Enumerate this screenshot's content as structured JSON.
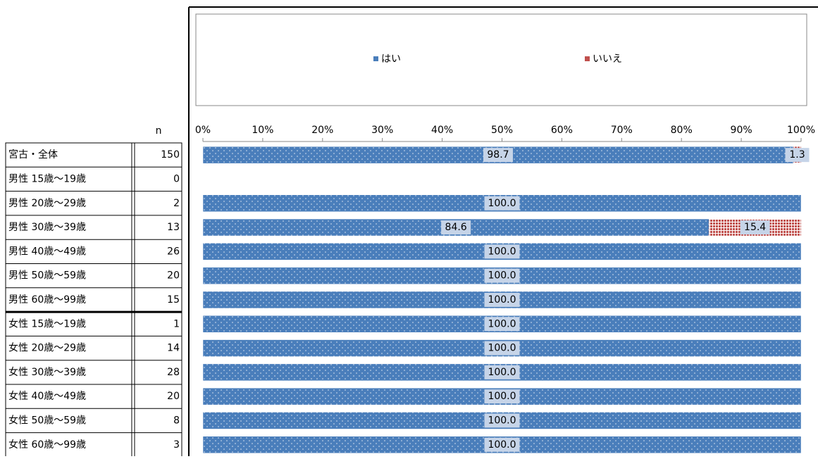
{
  "chart_data": {
    "type": "stacked-bar-horizontal",
    "n_label": "n",
    "categories": [
      "宮古・全体",
      "男性 15歳～19歳",
      "男性 20歳～29歳",
      "男性 30歳～39歳",
      "男性 40歳～49歳",
      "男性 50歳～59歳",
      "男性 60歳～99歳",
      "女性 15歳～19歳",
      "女性 20歳～29歳",
      "女性 30歳～39歳",
      "女性 40歳～49歳",
      "女性 50歳～59歳",
      "女性 60歳～99歳"
    ],
    "n": [
      150,
      0,
      2,
      13,
      26,
      20,
      15,
      1,
      14,
      28,
      20,
      8,
      3
    ],
    "series": [
      {
        "name": "はい",
        "color": "#4a7ebb",
        "values": [
          98.7,
          null,
          100,
          84.6,
          100,
          100,
          100,
          100,
          100,
          100,
          100,
          100,
          100
        ],
        "value_labels": [
          "98.7",
          null,
          "100.0",
          "84.6",
          "100.0",
          "100.0",
          "100.0",
          "100.0",
          "100.0",
          "100.0",
          "100.0",
          "100.0",
          "100.0"
        ]
      },
      {
        "name": "いいえ",
        "color": "#c0504d",
        "values": [
          1.3,
          null,
          0,
          15.4,
          0,
          0,
          0,
          0,
          0,
          0,
          0,
          0,
          0
        ],
        "value_labels": [
          "1.3",
          null,
          null,
          "15.4",
          null,
          null,
          null,
          null,
          null,
          null,
          null,
          null,
          null
        ]
      }
    ],
    "xlim": [
      0,
      100
    ],
    "xticks": [
      {
        "value": 0,
        "label": "0%"
      },
      {
        "value": 10,
        "label": "10%"
      },
      {
        "value": 20,
        "label": "20%"
      },
      {
        "value": 30,
        "label": "30%"
      },
      {
        "value": 40,
        "label": "40%"
      },
      {
        "value": 50,
        "label": "50%"
      },
      {
        "value": 60,
        "label": "60%"
      },
      {
        "value": 70,
        "label": "70%"
      },
      {
        "value": 80,
        "label": "80%"
      },
      {
        "value": 90,
        "label": "90%"
      },
      {
        "value": 100,
        "label": "100%"
      }
    ],
    "legend": "top"
  }
}
